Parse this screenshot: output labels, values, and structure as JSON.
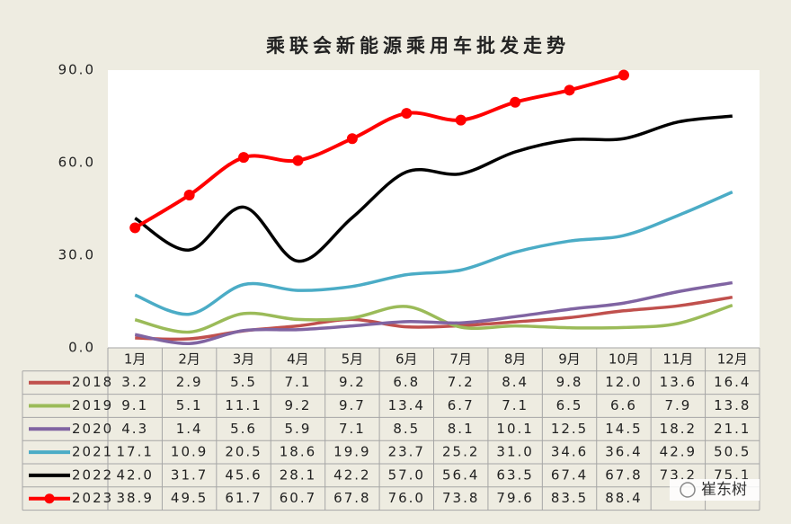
{
  "chart_data": {
    "type": "line",
    "title": "乘联会新能源乘用车批发走势",
    "categories": [
      "1月",
      "2月",
      "3月",
      "4月",
      "5月",
      "6月",
      "7月",
      "8月",
      "9月",
      "10月",
      "11月",
      "12月"
    ],
    "ylim": [
      0,
      90
    ],
    "yticks": [
      {
        "value": 0,
        "label": "0.0"
      },
      {
        "value": 30,
        "label": "30.0"
      },
      {
        "value": 60,
        "label": "60.0"
      },
      {
        "value": 90,
        "label": "90.0"
      }
    ],
    "series": [
      {
        "name": "2018",
        "color": "#c0504d",
        "values": [
          3.2,
          2.9,
          5.5,
          7.1,
          9.2,
          6.8,
          7.2,
          8.4,
          9.8,
          12.0,
          13.6,
          16.4
        ],
        "value_labels": [
          "3.2",
          "2.9",
          "5.5",
          "7.1",
          "9.2",
          "6.8",
          "7.2",
          "8.4",
          "9.8",
          "12.0",
          "13.6",
          "16.4"
        ]
      },
      {
        "name": "2019",
        "color": "#9bbb59",
        "values": [
          9.1,
          5.1,
          11.1,
          9.2,
          9.7,
          13.4,
          6.7,
          7.1,
          6.5,
          6.6,
          7.9,
          13.8
        ],
        "value_labels": [
          "9.1",
          "5.1",
          "11.1",
          "9.2",
          "9.7",
          "13.4",
          "6.7",
          "7.1",
          "6.5",
          "6.6",
          "7.9",
          "13.8"
        ]
      },
      {
        "name": "2020",
        "color": "#8064a2",
        "values": [
          4.3,
          1.4,
          5.6,
          5.9,
          7.1,
          8.5,
          8.1,
          10.1,
          12.5,
          14.5,
          18.2,
          21.1
        ],
        "value_labels": [
          "4.3",
          "1.4",
          "5.6",
          "5.9",
          "7.1",
          "8.5",
          "8.1",
          "10.1",
          "12.5",
          "14.5",
          "18.2",
          "21.1"
        ]
      },
      {
        "name": "2021",
        "color": "#4bacc6",
        "values": [
          17.1,
          10.9,
          20.5,
          18.6,
          19.9,
          23.7,
          25.2,
          31.0,
          34.6,
          36.4,
          42.9,
          50.5
        ],
        "value_labels": [
          "17.1",
          "10.9",
          "20.5",
          "18.6",
          "19.9",
          "23.7",
          "25.2",
          "31.0",
          "34.6",
          "36.4",
          "42.9",
          "50.5"
        ]
      },
      {
        "name": "2022",
        "color": "#000000",
        "values": [
          42.0,
          31.7,
          45.6,
          28.1,
          42.2,
          57.0,
          56.4,
          63.5,
          67.4,
          67.8,
          73.2,
          75.1
        ],
        "value_labels": [
          "42.0",
          "31.7",
          "45.6",
          "28.1",
          "42.2",
          "57.0",
          "56.4",
          "63.5",
          "67.4",
          "67.8",
          "73.2",
          "75.1"
        ]
      },
      {
        "name": "2023",
        "color": "#ff0000",
        "marker": true,
        "values": [
          38.9,
          49.5,
          61.7,
          60.7,
          67.8,
          76.0,
          73.8,
          79.6,
          83.5,
          88.4,
          null,
          null
        ],
        "value_labels": [
          "38.9",
          "49.5",
          "61.7",
          "60.7",
          "67.8",
          "76.0",
          "73.8",
          "79.6",
          "83.5",
          "88.4",
          null,
          null
        ]
      }
    ],
    "watermark": "崔东树"
  }
}
